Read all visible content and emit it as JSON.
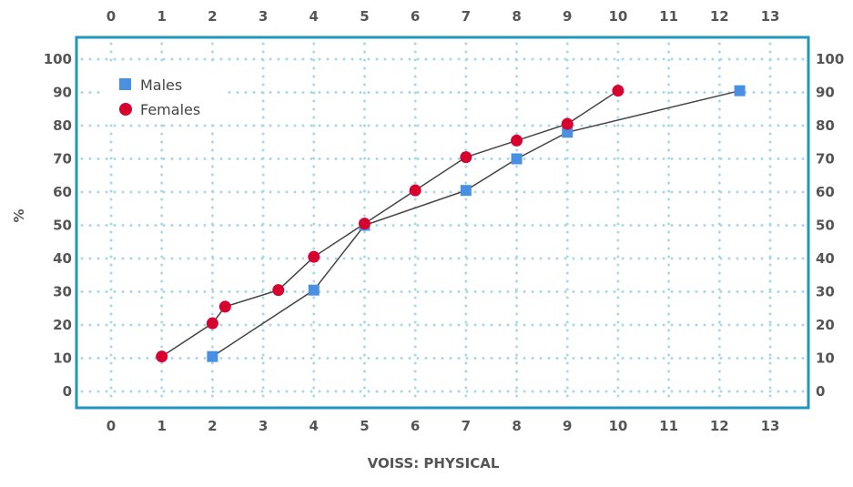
{
  "chart_data": {
    "type": "line",
    "title": "",
    "xlabel": "VOISS: PHYSICAL",
    "ylabel": "%",
    "xlim": [
      0,
      13
    ],
    "ylim": [
      0,
      100
    ],
    "x_ticks": [
      "0",
      "1",
      "2",
      "3",
      "4",
      "5",
      "6",
      "7",
      "8",
      "9",
      "10",
      "11",
      "12",
      "13"
    ],
    "y_ticks": [
      "0",
      "10",
      "20",
      "30",
      "40",
      "50",
      "60",
      "70",
      "80",
      "90",
      "100"
    ],
    "grid": true,
    "legend_position": "top-left",
    "series": [
      {
        "name": "Males",
        "marker": "square",
        "color": "#4a90e2",
        "x": [
          2,
          4,
          5,
          7,
          8,
          9,
          12.4
        ],
        "y": [
          10.5,
          30.5,
          50,
          60.5,
          70,
          78,
          90.5
        ]
      },
      {
        "name": "Females",
        "marker": "circle",
        "color": "#d7002f",
        "x": [
          1,
          2,
          2.25,
          3.3,
          4,
          5,
          6,
          7,
          8,
          9,
          10
        ],
        "y": [
          10.5,
          20.5,
          25.5,
          30.5,
          40.5,
          50.5,
          60.5,
          70.5,
          75.5,
          80.5,
          90.5
        ]
      }
    ]
  },
  "colors": {
    "frame": "#2196c0",
    "grid": "#a8d8ea",
    "line": "#444444"
  }
}
